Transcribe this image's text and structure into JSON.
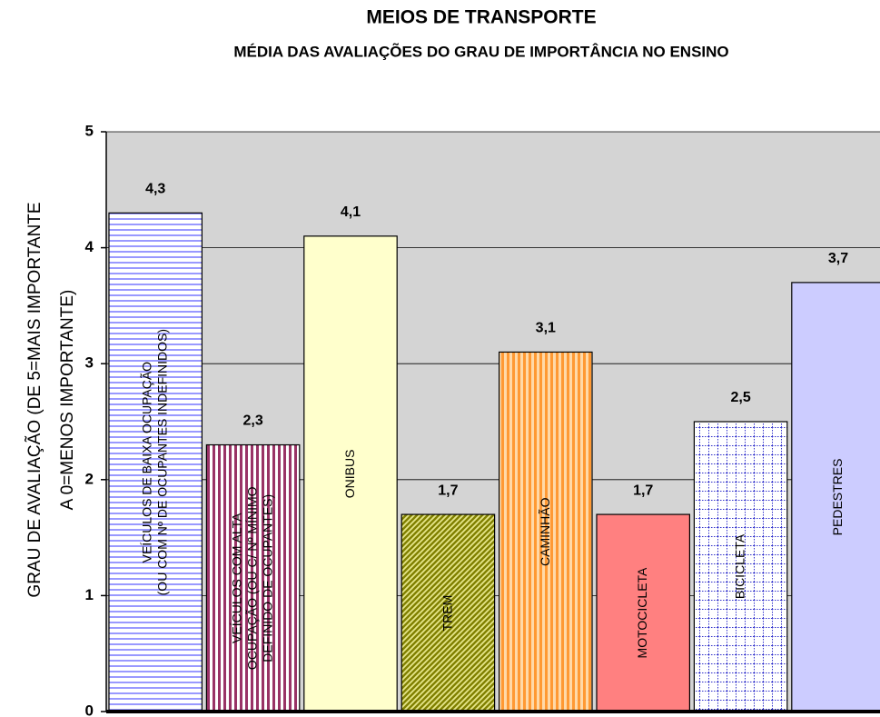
{
  "chart_data": {
    "type": "bar",
    "title": "MEIOS DE TRANSPORTE",
    "subtitle": "MÉDIA DAS AVALIAÇÕES DO GRAU DE IMPORTÂNCIA NO ENSINO",
    "y_label": "GRAU DE AVALIAÇÃO (DE 5=MAIS IMPORTANTE\nA 0=MENOS IMPORTANTE)",
    "categories": [
      "VEÍCULOS DE BAIXA OCUPAÇÃO\n(OU COM Nº DE OCUPANTES INDEFINIDOS)",
      "VEÍCULOS COM ALTA\nOCUPAÇÃO (OU C/ Nº MÍNIMO\nDEFINIDO DE OCUPANTES)",
      "ONIBUS",
      "TREM",
      "CAMINHÃO",
      "MOTOCICLETA",
      "BICICLETA",
      "PEDESTRES"
    ],
    "values": [
      4.3,
      2.3,
      4.1,
      1.7,
      3.1,
      1.7,
      2.5,
      3.7
    ],
    "value_labels": [
      "4,3",
      "2,3",
      "4,1",
      "1,7",
      "3,1",
      "1,7",
      "2,5",
      "3,7"
    ],
    "colors": [
      "#9999ff",
      "#993366",
      "#ffffcc",
      "#808000",
      "#ff9933",
      "#ff8080",
      "#3333cc",
      "#ccccff"
    ],
    "ylim": [
      0,
      5
    ],
    "yticks": [
      0,
      1,
      2,
      3,
      4,
      5
    ],
    "grid": true
  }
}
